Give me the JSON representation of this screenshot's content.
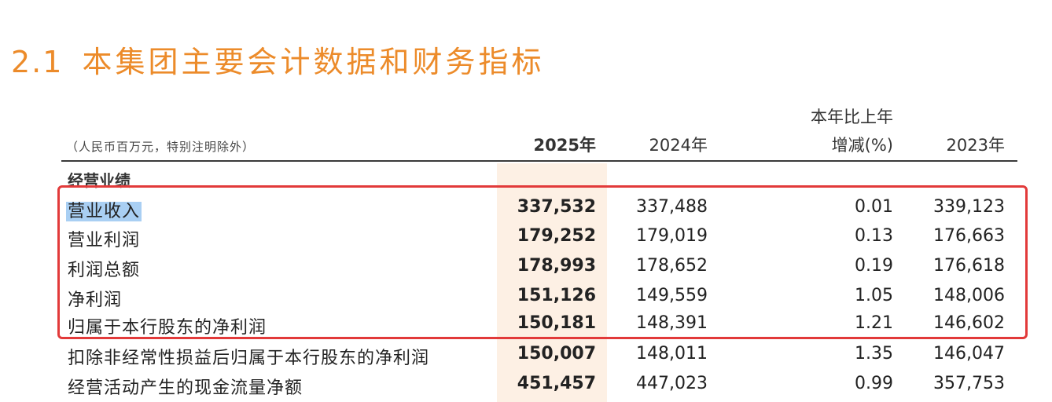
{
  "title": {
    "number": "2.1",
    "text": "本集团主要会计数据和财务指标"
  },
  "header": {
    "unit_note": "（人民币百万元，特别注明除外）",
    "col_2025": "2025年",
    "col_2024": "2024年",
    "col_change_line1": "本年比上年",
    "col_change_line2": "增减(%)",
    "col_2023": "2023年"
  },
  "section_label": "经营业绩",
  "rows": [
    {
      "label": "营业收入",
      "y2025": "337,532",
      "y2024": "337,488",
      "change": "0.01",
      "y2023": "339,123"
    },
    {
      "label": "营业利润",
      "y2025": "179,252",
      "y2024": "179,019",
      "change": "0.13",
      "y2023": "176,663"
    },
    {
      "label": "利润总额",
      "y2025": "178,993",
      "y2024": "178,652",
      "change": "0.19",
      "y2023": "176,618"
    },
    {
      "label": "净利润",
      "y2025": "151,126",
      "y2024": "149,559",
      "change": "1.05",
      "y2023": "148,006"
    },
    {
      "label": "归属于本行股东的净利润",
      "y2025": "150,181",
      "y2024": "148,391",
      "change": "1.21",
      "y2023": "146,602"
    },
    {
      "label": "扣除非经常性损益后归属于本行股东的净利润",
      "y2025": "150,007",
      "y2024": "148,011",
      "change": "1.35",
      "y2023": "146,047"
    },
    {
      "label": "经营活动产生的现金流量净额",
      "y2025": "451,457",
      "y2024": "447,023",
      "change": "0.99",
      "y2023": "357,753"
    }
  ],
  "colors": {
    "title": "#ec8b2a",
    "highlight_column": "#fdf0e4",
    "annotation_box": "#e23a3a",
    "text_selection": "#a9cff3"
  }
}
